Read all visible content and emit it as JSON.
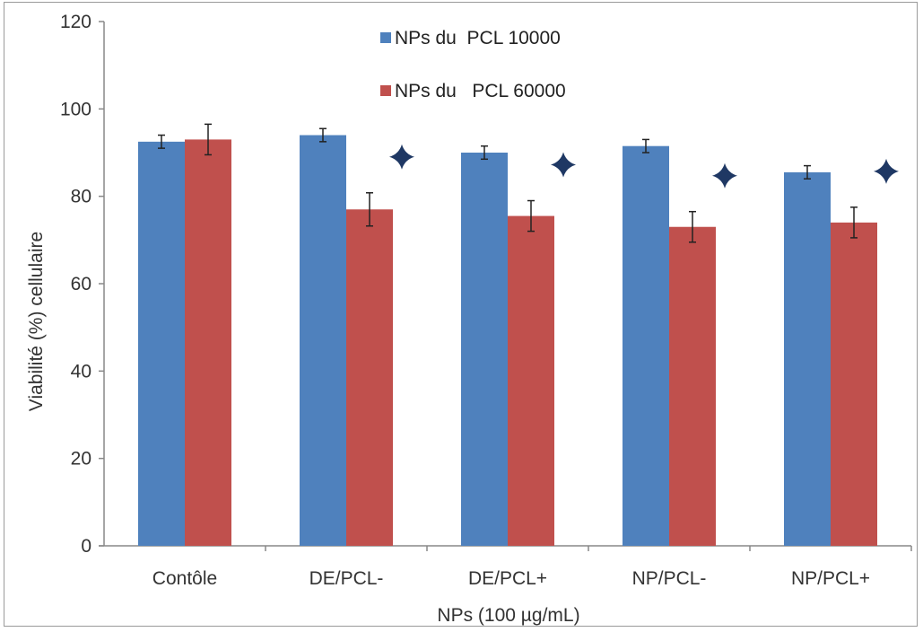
{
  "chart_data": {
    "type": "bar",
    "title": "",
    "xlabel": "NPs (100 µg/mL)",
    "ylabel": "Viabilité (%) cellulaire",
    "ylim": [
      0,
      120
    ],
    "yticks": [
      "0",
      "20",
      "40",
      "60",
      "80",
      "100",
      "120"
    ],
    "categories": [
      "Contôle",
      "DE/PCL-",
      "DE/PCL+",
      "NP/PCL-",
      "NP/PCL+"
    ],
    "series": [
      {
        "name": "NPs du  PCL 10000",
        "color": "#4F81BD",
        "values": [
          92.5,
          94,
          90,
          91.5,
          85.5
        ],
        "errors": [
          1.5,
          1.5,
          1.5,
          1.5,
          1.5
        ]
      },
      {
        "name": "NPs du   PCL 60000",
        "color": "#C0504D",
        "values": [
          93,
          77,
          75.5,
          73,
          74
        ],
        "errors": [
          3.5,
          3.8,
          3.5,
          3.5,
          3.5
        ]
      }
    ],
    "significance_marker": "star",
    "significance_color": "#1F3864",
    "significant": [
      false,
      true,
      true,
      true,
      true
    ],
    "legend_position": "top-center",
    "grid": false
  }
}
